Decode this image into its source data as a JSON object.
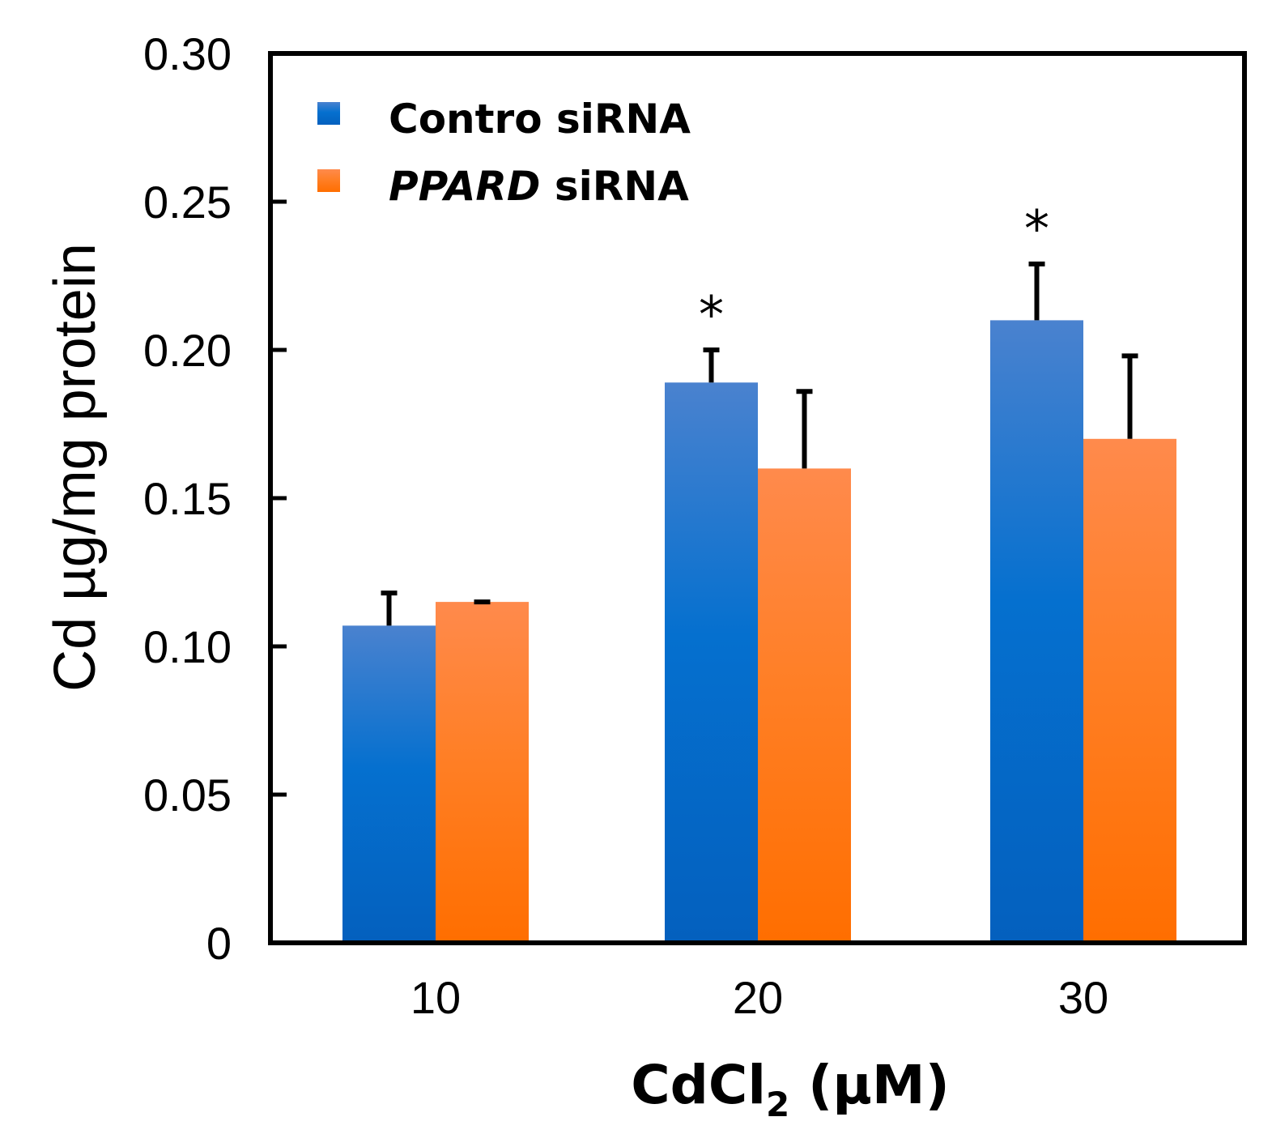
{
  "chart_data": {
    "type": "bar",
    "categories": [
      "10",
      "20",
      "30"
    ],
    "series": [
      {
        "name": "Contro siRNA",
        "name_parts": [
          "Contro",
          "siRNA"
        ],
        "color": "#0B6FCC",
        "values": [
          0.107,
          0.189,
          0.21
        ],
        "errors": [
          0.011,
          0.011,
          0.019
        ]
      },
      {
        "name": "PPARD siRNA",
        "name_parts": [
          "PPARD",
          "siRNA"
        ],
        "color": "#FF7A1F",
        "values": [
          0.115,
          0.16,
          0.17
        ],
        "errors": [
          0.0,
          0.026,
          0.028
        ]
      }
    ],
    "significance": [
      "",
      "*",
      "*"
    ],
    "ylabel": "Cd µg/mg protein",
    "xlabel": {
      "main": "CdCl",
      "subscript": "2",
      "unit": " (µM)"
    },
    "ylim": [
      0,
      0.3
    ],
    "yticks": [
      "0",
      "0.05",
      "0.10",
      "0.15",
      "0.20",
      "0.25",
      "0.30"
    ],
    "legend_position": "top-left",
    "grid": false
  }
}
